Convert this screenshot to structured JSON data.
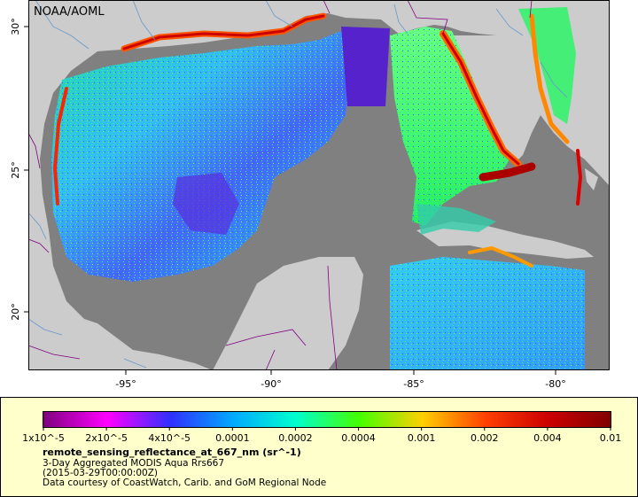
{
  "map": {
    "watermark": "NOAA/AOML",
    "lon_ticks": [
      "-95°",
      "-90°",
      "-85°",
      "-80°"
    ],
    "lat_ticks": [
      "30°",
      "25°",
      "20°"
    ],
    "lon_range": [
      -98,
      -78
    ],
    "lat_range": [
      18.5,
      31
    ],
    "colors": {
      "land": "#cccccc",
      "no_data": "#808080",
      "water_background": "#ffffff",
      "coast_high": "#c00000",
      "rivers": "#6699cc",
      "borders": "#800080"
    }
  },
  "colorbar": {
    "tick_labels": [
      "1x10^-5",
      "2x10^-5",
      "4x10^-5",
      "0.0001",
      "0.0002",
      "0.0004",
      "0.001",
      "0.002",
      "0.004",
      "0.01"
    ],
    "colors": [
      "#800080",
      "#ff00ff",
      "#3030ff",
      "#00aaff",
      "#00ffcc",
      "#44ff00",
      "#ffd000",
      "#ff4000",
      "#cc0000",
      "#800000"
    ]
  },
  "legend": {
    "variable": "remote_sensing_reflectance_at_667_nm (sr^-1)",
    "product": "3-Day Aggregated MODIS Aqua Rrs667",
    "timestamp": "(2015-03-29T00:00:00Z)",
    "credit": "Data courtesy of CoastWatch, Carib. and GoM Regional Node"
  }
}
